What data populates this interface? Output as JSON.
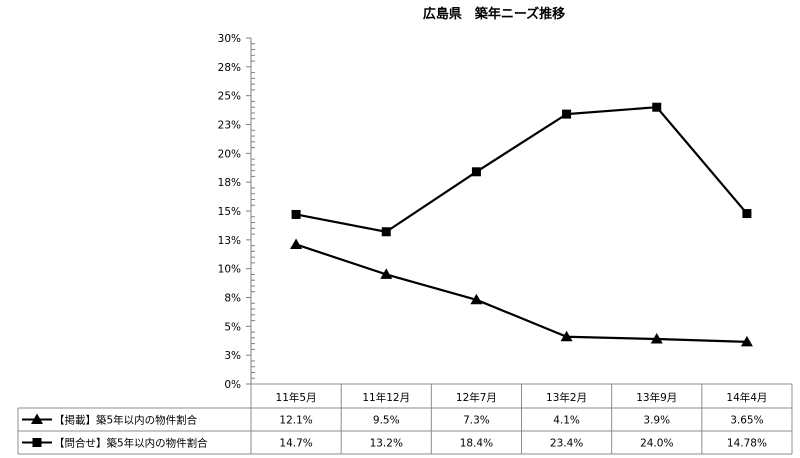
{
  "chart_data": {
    "type": "line",
    "title": "広島県　築年ニーズ推移",
    "xlabel": "",
    "ylabel": "",
    "ylim": [
      0,
      30
    ],
    "y_tick_step": 2.5,
    "y_tick_labels": [
      "0%",
      "3%",
      "5%",
      "8%",
      "10%",
      "13%",
      "15%",
      "18%",
      "20%",
      "23%",
      "25%",
      "28%",
      "30%"
    ],
    "categories": [
      "11年5月",
      "11年12月",
      "12年7月",
      "13年2月",
      "13年9月",
      "14年4月"
    ],
    "grid": false,
    "legend_position": "data-table-left",
    "series": [
      {
        "name": "【掲載】築5年以内の物件割合",
        "marker": "triangle",
        "color": "#000000",
        "values": [
          12.1,
          9.5,
          7.3,
          4.1,
          3.9,
          3.65
        ],
        "labels": [
          "12.1%",
          "9.5%",
          "7.3%",
          "4.1%",
          "3.9%",
          "3.65%"
        ]
      },
      {
        "name": "【問合せ】築5年以内の物件割合",
        "marker": "square",
        "color": "#000000",
        "values": [
          14.7,
          13.2,
          18.4,
          23.4,
          24.0,
          14.78
        ],
        "labels": [
          "14.7%",
          "13.2%",
          "18.4%",
          "23.4%",
          "24.0%",
          "14.78%"
        ]
      }
    ]
  }
}
